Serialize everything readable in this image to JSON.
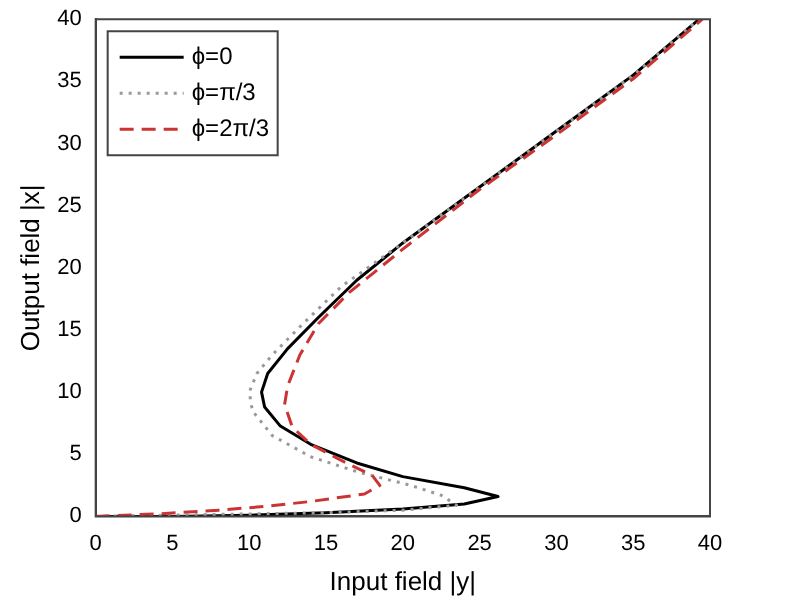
{
  "chart_data": {
    "type": "line",
    "xlabel": "Input field |y|",
    "ylabel": "Output field |x|",
    "xlim": [
      0,
      40
    ],
    "ylim": [
      0,
      40
    ],
    "xticks": [
      0,
      5,
      10,
      15,
      20,
      25,
      30,
      35,
      40
    ],
    "yticks": [
      0,
      5,
      10,
      15,
      20,
      25,
      30,
      35,
      40
    ],
    "grid": false,
    "legend": "top left",
    "marker": "none",
    "series": [
      {
        "name": "ϕ=0",
        "color": "#000000",
        "line_style": "solid",
        "x": [
          0,
          5,
          10,
          15,
          20,
          24,
          26.2,
          24,
          20,
          17,
          14,
          12,
          11,
          10.8,
          11.2,
          12.5,
          14.5,
          17,
          20,
          25,
          30,
          35,
          39.3
        ],
        "values": [
          0,
          0,
          0.1,
          0.3,
          0.6,
          1,
          1.6,
          2.3,
          3.2,
          4.3,
          5.8,
          7.3,
          8.8,
          10,
          11.5,
          13.5,
          16,
          19,
          22,
          26.5,
          31,
          35.5,
          40
        ]
      },
      {
        "name": "ϕ=π/3",
        "color": "#999999",
        "line_style": "dotted",
        "x": [
          0,
          5,
          10,
          15,
          20,
          23.5,
          22.5,
          20.5,
          17,
          14,
          11.5,
          10.2,
          10,
          10.5,
          11.5,
          13.5,
          16,
          20,
          25,
          30,
          35,
          39.3
        ],
        "values": [
          0,
          0.1,
          0.2,
          0.3,
          0.5,
          0.9,
          1.7,
          2.5,
          3.6,
          4.8,
          6.5,
          8.5,
          10,
          11.5,
          13,
          15.5,
          18.5,
          22,
          26.5,
          31,
          35.5,
          40
        ]
      },
      {
        "name": "ϕ=2π/3",
        "color": "#cc3333",
        "line_style": "dashed",
        "x": [
          0,
          4,
          8,
          11,
          14,
          17.5,
          18.5,
          18,
          16,
          14,
          12.8,
          12.3,
          12.5,
          13.3,
          14.5,
          16.5,
          20,
          25,
          30,
          35,
          39.5
        ],
        "values": [
          0,
          0.2,
          0.5,
          0.8,
          1.2,
          1.8,
          2.5,
          3.3,
          4.5,
          5.8,
          7.2,
          9,
          10.5,
          13,
          15.5,
          18,
          21.5,
          26.3,
          30.7,
          35.2,
          40
        ]
      }
    ]
  }
}
